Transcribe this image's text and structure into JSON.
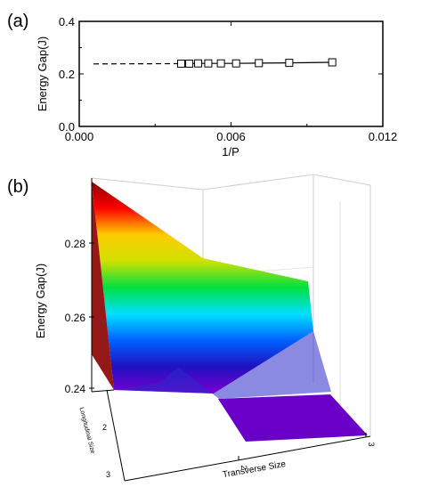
{
  "chart_data": [
    {
      "panel_label": "(a)",
      "type": "line",
      "xlabel": "1/P",
      "ylabel": "Energy Gap(J)",
      "xlim": [
        0.0,
        0.012
      ],
      "ylim": [
        0.0,
        0.4
      ],
      "xticks": [
        "0.000",
        "0.006",
        "0.012"
      ],
      "xtick_values": [
        0.0,
        0.006,
        0.012
      ],
      "yticks": [
        "0.0",
        "0.2",
        "0.4"
      ],
      "ytick_values": [
        0.0,
        0.2,
        0.4
      ],
      "series": [
        {
          "style": "solid line with open square markers",
          "x": [
            0.00403,
            0.00435,
            0.0047,
            0.0051,
            0.0056,
            0.0062,
            0.0071,
            0.0083,
            0.01
          ],
          "y": [
            0.239,
            0.239,
            0.24,
            0.24,
            0.24,
            0.24,
            0.241,
            0.242,
            0.244
          ]
        },
        {
          "style": "dashed extrapolation line",
          "x": [
            0.0,
            0.00403
          ],
          "y": [
            0.238,
            0.239
          ]
        }
      ],
      "grid": false
    },
    {
      "panel_label": "(b)",
      "type": "surface",
      "zlabel": "Energy Gap(J)",
      "xlabel": "Transverse Size",
      "ylabel": "Longitudinal Size",
      "zticks": [
        "0.24",
        "0.26",
        "0.28"
      ],
      "xticks": [
        "2",
        "3"
      ],
      "yticks": [
        "2",
        "3"
      ],
      "x_values": [
        1,
        2,
        3
      ],
      "y_values": [
        1,
        2,
        3
      ],
      "z_values": [
        [
          0.297,
          0.272,
          0.251
        ],
        [
          0.265,
          0.248,
          0.24
        ],
        [
          0.239,
          0.236,
          0.236
        ]
      ],
      "colormap": [
        "#8b0000",
        "#ff0000",
        "#ffcc00",
        "#cfe000",
        "#00e040",
        "#00e0ff",
        "#0060ff",
        "#2010c0",
        "#7a00d0"
      ]
    }
  ]
}
